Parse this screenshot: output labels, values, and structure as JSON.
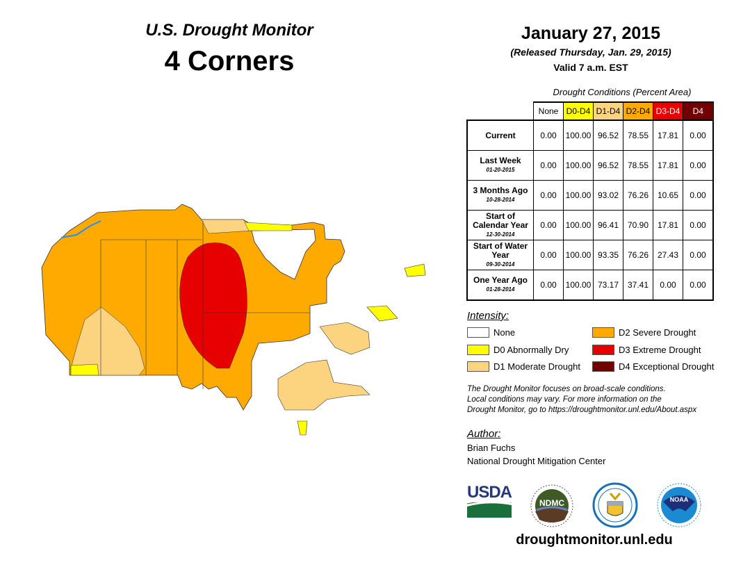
{
  "header": {
    "title": "U.S. Drought Monitor",
    "region": "4 Corners",
    "date": "January 27, 2015",
    "released": "(Released Thursday, Jan. 29, 2015)",
    "valid": "Valid 7 a.m. EST"
  },
  "table": {
    "caption": "Drought Conditions (Percent Area)",
    "columns": [
      {
        "label": "None",
        "bg": "#ffffff",
        "fg": "#000000"
      },
      {
        "label": "D0-D4",
        "bg": "#ffff00",
        "fg": "#000000"
      },
      {
        "label": "D1-D4",
        "bg": "#fcd37f",
        "fg": "#000000"
      },
      {
        "label": "D2-D4",
        "bg": "#ffaa00",
        "fg": "#000000"
      },
      {
        "label": "D3-D4",
        "bg": "#e60000",
        "fg": "#ffffff"
      },
      {
        "label": "D4",
        "bg": "#730000",
        "fg": "#ffffff"
      }
    ],
    "rows": [
      {
        "label": "Current",
        "date": "",
        "values": [
          "0.00",
          "100.00",
          "96.52",
          "78.55",
          "17.81",
          "0.00"
        ]
      },
      {
        "label": "Last Week",
        "date": "01-20-2015",
        "values": [
          "0.00",
          "100.00",
          "96.52",
          "78.55",
          "17.81",
          "0.00"
        ]
      },
      {
        "label": "3 Months Ago",
        "date": "10-28-2014",
        "values": [
          "0.00",
          "100.00",
          "93.02",
          "76.26",
          "10.65",
          "0.00"
        ]
      },
      {
        "label": "Start of Calendar Year",
        "date": "12-30-2014",
        "values": [
          "0.00",
          "100.00",
          "96.41",
          "70.90",
          "17.81",
          "0.00"
        ]
      },
      {
        "label": "Start of Water Year",
        "date": "09-30-2014",
        "values": [
          "0.00",
          "100.00",
          "93.35",
          "76.26",
          "27.43",
          "0.00"
        ]
      },
      {
        "label": "One Year Ago",
        "date": "01-28-2014",
        "values": [
          "0.00",
          "100.00",
          "73.17",
          "37.41",
          "0.00",
          "0.00"
        ]
      }
    ]
  },
  "legend": {
    "title": "Intensity:",
    "items": [
      {
        "label": "None",
        "color": "#ffffff"
      },
      {
        "label": "D0 Abnormally Dry",
        "color": "#ffff00"
      },
      {
        "label": "D1 Moderate Drought",
        "color": "#fcd37f"
      },
      {
        "label": "D2 Severe Drought",
        "color": "#ffaa00"
      },
      {
        "label": "D3 Extreme Drought",
        "color": "#e60000"
      },
      {
        "label": "D4 Exceptional Drought",
        "color": "#730000"
      }
    ]
  },
  "note": [
    "The Drought Monitor focuses on broad-scale conditions.",
    "Local conditions may vary. For more information on the",
    "Drought Monitor, go to https://droughtmonitor.unl.edu/About.aspx"
  ],
  "author": {
    "title": "Author:",
    "name": "Brian Fuchs",
    "org": "National Drought Mitigation Center"
  },
  "logos": {
    "usda": "USDA",
    "ndmc": "NDMC",
    "noaa": "NOAA"
  },
  "footer": {
    "site": "droughtmonitor.unl.edu"
  }
}
